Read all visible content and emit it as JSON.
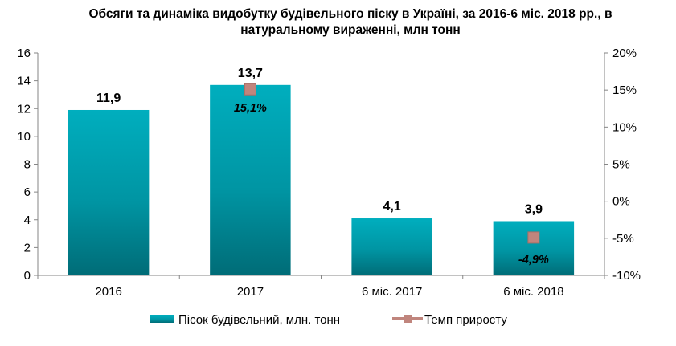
{
  "chart_data": {
    "type": "bar",
    "title_lines": [
      "Обсяги та динаміка видобутку будівельного піску в Україні, за 2016-6 міс. 2018 рр., в",
      "натуральному вираженні, млн тонн"
    ],
    "categories": [
      "2016",
      "2017",
      "6 міс. 2017",
      "6 міс. 2018"
    ],
    "series": [
      {
        "name": "Пісок будівельний, млн. тонн",
        "type": "bar",
        "axis": "left",
        "values": [
          11.9,
          13.7,
          4.1,
          3.9
        ],
        "labels": [
          "11,9",
          "13,7",
          "4,1",
          "3,9"
        ],
        "color": "#0097A7"
      },
      {
        "name": "Темп приросту",
        "type": "marker",
        "axis": "right",
        "values": [
          null,
          15.1,
          null,
          -4.9
        ],
        "labels": [
          "",
          "15,1%",
          "",
          "-4,9%"
        ],
        "color": "#C0857D"
      }
    ],
    "y_left": {
      "min": 0,
      "max": 16,
      "step": 2,
      "ticks": [
        "0",
        "2",
        "4",
        "6",
        "8",
        "10",
        "12",
        "14",
        "16"
      ]
    },
    "y_right": {
      "min": -10,
      "max": 20,
      "step": 5,
      "ticks": [
        "-10%",
        "-5%",
        "0%",
        "5%",
        "10%",
        "15%",
        "20%"
      ]
    },
    "grid": false,
    "legend": "bottom"
  }
}
